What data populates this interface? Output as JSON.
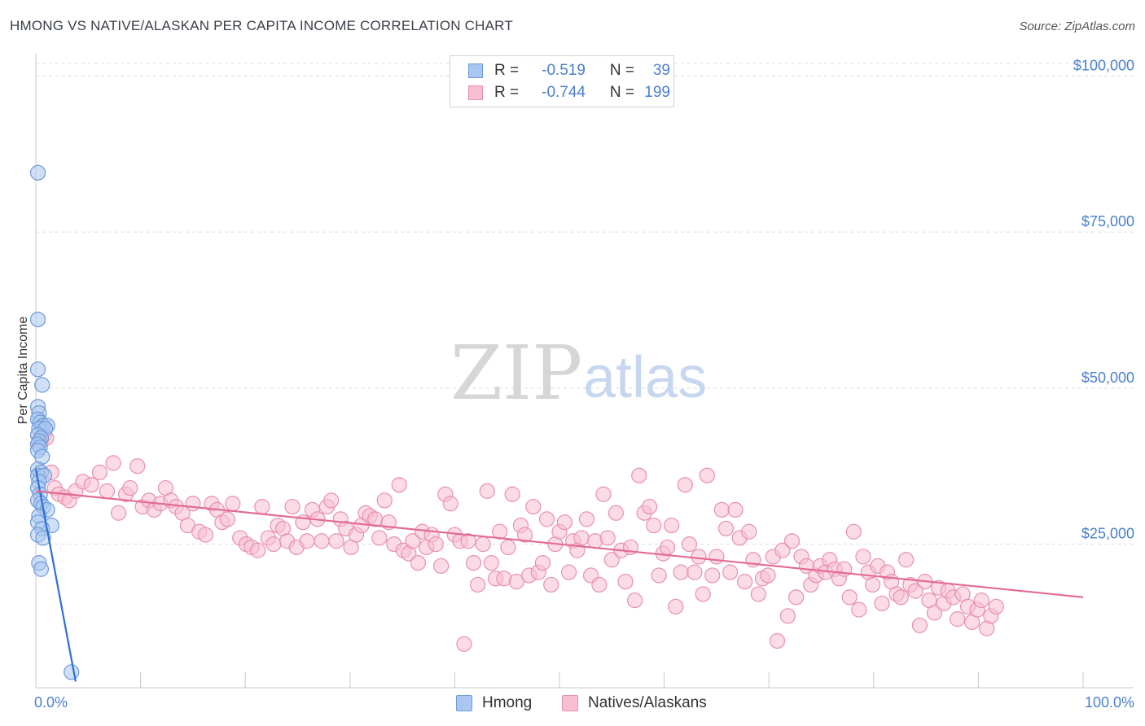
{
  "title": "HMONG VS NATIVE/ALASKAN PER CAPITA INCOME CORRELATION CHART",
  "source": "Source: ZipAtlas.com",
  "watermark": {
    "zip": "ZIP",
    "atlas": "atlas"
  },
  "legend": {
    "rows": [
      {
        "r_label": "R =",
        "r_value": "-0.519",
        "n_label": "N =",
        "n_value": "39",
        "color": "#a9c7f0",
        "border": "#6d9ad9"
      },
      {
        "r_label": "R =",
        "r_value": "-0.744",
        "n_label": "N =",
        "n_value": "199",
        "color": "#f7bfd1",
        "border": "#e890ad"
      }
    ]
  },
  "bottom_legend": [
    {
      "label": "Hmong",
      "color": "#a9c7f0",
      "border": "#6d9ad9"
    },
    {
      "label": "Natives/Alaskans",
      "color": "#f7bfd1",
      "border": "#e890ad"
    }
  ],
  "chart_data": {
    "type": "scatter",
    "title": "HMONG VS NATIVE/ALASKAN PER CAPITA INCOME CORRELATION CHART",
    "xlabel": "",
    "ylabel": "Per Capita Income",
    "x_tick_labels": [
      "0.0%",
      "100.0%"
    ],
    "y_tick_labels": [
      "$25,000",
      "$50,000",
      "$75,000",
      "$100,000"
    ],
    "y_ticks": [
      25000,
      50000,
      75000,
      100000
    ],
    "xlim": [
      0,
      100
    ],
    "ylim": [
      2000,
      102000
    ],
    "grid": true,
    "series": [
      {
        "name": "Hmong",
        "color": "#6d9ad9",
        "fill": "#a9c7f0",
        "trend": {
          "x0": 0,
          "y0": 37000,
          "x1": 3.8,
          "y1": 3000,
          "color": "#2f6fd6"
        },
        "points": [
          [
            0.2,
            84500
          ],
          [
            0.2,
            61000
          ],
          [
            0.2,
            53000
          ],
          [
            0.6,
            50500
          ],
          [
            0.2,
            47000
          ],
          [
            0.3,
            46000
          ],
          [
            0.2,
            45000
          ],
          [
            0.4,
            44500
          ],
          [
            0.7,
            44000
          ],
          [
            1.1,
            44000
          ],
          [
            0.3,
            43500
          ],
          [
            0.9,
            43500
          ],
          [
            0.2,
            42500
          ],
          [
            0.5,
            42000
          ],
          [
            0.3,
            41500
          ],
          [
            0.2,
            41000
          ],
          [
            0.4,
            40500
          ],
          [
            0.2,
            40000
          ],
          [
            0.6,
            39000
          ],
          [
            0.2,
            37000
          ],
          [
            0.5,
            36500
          ],
          [
            0.2,
            36000
          ],
          [
            0.8,
            36000
          ],
          [
            0.3,
            35000
          ],
          [
            0.2,
            34000
          ],
          [
            0.4,
            33000
          ],
          [
            0.2,
            32000
          ],
          [
            0.5,
            31500
          ],
          [
            0.7,
            31000
          ],
          [
            1.1,
            30500
          ],
          [
            0.3,
            29500
          ],
          [
            0.2,
            28500
          ],
          [
            1.5,
            28000
          ],
          [
            0.6,
            27500
          ],
          [
            0.2,
            26500
          ],
          [
            0.7,
            26000
          ],
          [
            0.3,
            22000
          ],
          [
            0.5,
            21000
          ],
          [
            3.4,
            4500
          ]
        ]
      },
      {
        "name": "Natives/Alaskans",
        "color": "#e890ad",
        "fill": "#f7bfd1",
        "trend": {
          "x0": 0,
          "y0": 33500,
          "x1": 100,
          "y1": 16500,
          "color": "#e26a95"
        },
        "points": [
          [
            0.6,
            44000
          ],
          [
            0.8,
            42500
          ],
          [
            0.5,
            41500
          ],
          [
            1.0,
            42000
          ],
          [
            1.5,
            36500
          ],
          [
            1.8,
            34000
          ],
          [
            2.2,
            33000
          ],
          [
            2.8,
            32500
          ],
          [
            3.2,
            32000
          ],
          [
            3.8,
            33500
          ],
          [
            4.5,
            35000
          ],
          [
            5.3,
            34500
          ],
          [
            6.1,
            36500
          ],
          [
            6.8,
            33500
          ],
          [
            7.4,
            38000
          ],
          [
            7.9,
            30000
          ],
          [
            8.6,
            33000
          ],
          [
            9.0,
            34000
          ],
          [
            9.7,
            37500
          ],
          [
            10.2,
            31000
          ],
          [
            10.8,
            32000
          ],
          [
            11.3,
            30500
          ],
          [
            11.9,
            31500
          ],
          [
            12.4,
            34000
          ],
          [
            12.9,
            32000
          ],
          [
            13.4,
            31000
          ],
          [
            14.0,
            30000
          ],
          [
            14.5,
            28000
          ],
          [
            15.0,
            31500
          ],
          [
            15.6,
            27000
          ],
          [
            16.2,
            26500
          ],
          [
            16.8,
            31500
          ],
          [
            17.3,
            30500
          ],
          [
            17.8,
            28500
          ],
          [
            18.3,
            29000
          ],
          [
            18.8,
            31500
          ],
          [
            19.5,
            26000
          ],
          [
            20.1,
            25000
          ],
          [
            20.6,
            24500
          ],
          [
            21.2,
            24000
          ],
          [
            21.6,
            31000
          ],
          [
            22.2,
            26000
          ],
          [
            22.7,
            25000
          ],
          [
            23.1,
            28000
          ],
          [
            23.6,
            27500
          ],
          [
            24.0,
            25500
          ],
          [
            24.5,
            31000
          ],
          [
            24.9,
            24500
          ],
          [
            25.5,
            28500
          ],
          [
            25.9,
            25500
          ],
          [
            26.4,
            30500
          ],
          [
            26.9,
            29000
          ],
          [
            27.3,
            25500
          ],
          [
            27.8,
            31000
          ],
          [
            28.2,
            32000
          ],
          [
            28.7,
            25500
          ],
          [
            29.1,
            29000
          ],
          [
            29.6,
            27500
          ],
          [
            30.1,
            24500
          ],
          [
            30.6,
            26500
          ],
          [
            31.1,
            28000
          ],
          [
            31.5,
            30000
          ],
          [
            31.9,
            29500
          ],
          [
            32.4,
            29000
          ],
          [
            32.8,
            26000
          ],
          [
            33.3,
            32000
          ],
          [
            33.7,
            28500
          ],
          [
            34.2,
            25000
          ],
          [
            34.7,
            34500
          ],
          [
            35.1,
            24000
          ],
          [
            35.6,
            23500
          ],
          [
            36.0,
            25500
          ],
          [
            36.5,
            22000
          ],
          [
            36.9,
            27000
          ],
          [
            37.3,
            24500
          ],
          [
            37.8,
            26500
          ],
          [
            38.2,
            25000
          ],
          [
            38.7,
            21500
          ],
          [
            39.1,
            33000
          ],
          [
            39.6,
            31500
          ],
          [
            40.0,
            26500
          ],
          [
            40.5,
            25500
          ],
          [
            40.9,
            9000
          ],
          [
            41.3,
            25500
          ],
          [
            41.8,
            22000
          ],
          [
            42.2,
            18500
          ],
          [
            42.7,
            25000
          ],
          [
            43.1,
            33500
          ],
          [
            43.5,
            22000
          ],
          [
            43.9,
            19500
          ],
          [
            44.3,
            27000
          ],
          [
            44.7,
            19500
          ],
          [
            45.1,
            24500
          ],
          [
            45.5,
            33000
          ],
          [
            45.9,
            19000
          ],
          [
            46.3,
            28000
          ],
          [
            46.7,
            26500
          ],
          [
            47.1,
            20000
          ],
          [
            47.5,
            31000
          ],
          [
            48.0,
            20500
          ],
          [
            48.4,
            22000
          ],
          [
            48.8,
            29000
          ],
          [
            49.2,
            18500
          ],
          [
            49.6,
            25000
          ],
          [
            50.0,
            27000
          ],
          [
            50.5,
            28500
          ],
          [
            50.9,
            20500
          ],
          [
            51.3,
            25500
          ],
          [
            51.7,
            24000
          ],
          [
            52.1,
            26000
          ],
          [
            52.6,
            29000
          ],
          [
            53.0,
            20000
          ],
          [
            53.4,
            25500
          ],
          [
            53.8,
            18500
          ],
          [
            54.2,
            33000
          ],
          [
            54.6,
            26000
          ],
          [
            55.0,
            22500
          ],
          [
            55.4,
            30000
          ],
          [
            55.9,
            24000
          ],
          [
            56.3,
            19000
          ],
          [
            56.8,
            24500
          ],
          [
            57.2,
            16000
          ],
          [
            57.6,
            36000
          ],
          [
            58.1,
            30000
          ],
          [
            58.6,
            31000
          ],
          [
            59.0,
            28000
          ],
          [
            59.5,
            20000
          ],
          [
            59.9,
            23500
          ],
          [
            60.3,
            24500
          ],
          [
            60.7,
            28000
          ],
          [
            61.1,
            15000
          ],
          [
            61.6,
            20500
          ],
          [
            62.0,
            34500
          ],
          [
            62.4,
            25000
          ],
          [
            62.9,
            20500
          ],
          [
            63.3,
            23000
          ],
          [
            63.7,
            17000
          ],
          [
            64.1,
            36000
          ],
          [
            64.6,
            20000
          ],
          [
            65.0,
            23000
          ],
          [
            65.5,
            30500
          ],
          [
            65.9,
            27500
          ],
          [
            66.3,
            20500
          ],
          [
            66.8,
            30500
          ],
          [
            67.2,
            26000
          ],
          [
            67.7,
            19000
          ],
          [
            68.1,
            27000
          ],
          [
            68.5,
            22500
          ],
          [
            69.0,
            17000
          ],
          [
            69.4,
            19500
          ],
          [
            69.9,
            20000
          ],
          [
            70.4,
            23000
          ],
          [
            70.8,
            9500
          ],
          [
            71.3,
            24000
          ],
          [
            71.8,
            13500
          ],
          [
            72.2,
            25500
          ],
          [
            72.6,
            16500
          ],
          [
            73.1,
            23000
          ],
          [
            73.6,
            21500
          ],
          [
            74.0,
            18500
          ],
          [
            74.5,
            20000
          ],
          [
            74.9,
            21500
          ],
          [
            75.4,
            20500
          ],
          [
            75.8,
            22500
          ],
          [
            76.3,
            21000
          ],
          [
            76.7,
            19500
          ],
          [
            77.2,
            21000
          ],
          [
            77.7,
            16500
          ],
          [
            78.1,
            27000
          ],
          [
            78.6,
            14500
          ],
          [
            79.0,
            23000
          ],
          [
            79.5,
            20500
          ],
          [
            79.9,
            18500
          ],
          [
            80.4,
            21500
          ],
          [
            80.8,
            15500
          ],
          [
            81.3,
            20500
          ],
          [
            81.7,
            19000
          ],
          [
            82.2,
            17000
          ],
          [
            82.6,
            16500
          ],
          [
            83.1,
            22500
          ],
          [
            83.5,
            18500
          ],
          [
            84.0,
            17500
          ],
          [
            84.4,
            12000
          ],
          [
            84.9,
            19000
          ],
          [
            85.3,
            16000
          ],
          [
            85.8,
            14000
          ],
          [
            86.2,
            18000
          ],
          [
            86.7,
            15500
          ],
          [
            87.1,
            17500
          ],
          [
            87.6,
            16500
          ],
          [
            88.0,
            13000
          ],
          [
            88.5,
            17000
          ],
          [
            89.0,
            15000
          ],
          [
            89.4,
            12500
          ],
          [
            89.9,
            14500
          ],
          [
            90.3,
            16000
          ],
          [
            90.8,
            11500
          ],
          [
            91.2,
            13500
          ],
          [
            91.7,
            15000
          ]
        ]
      }
    ]
  }
}
